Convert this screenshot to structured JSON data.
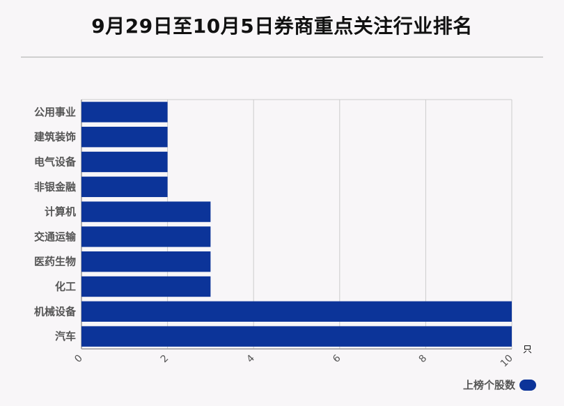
{
  "title": "9月29日至10月5日券商重点关注行业排名",
  "chart_data": {
    "type": "bar",
    "orientation": "horizontal",
    "categories": [
      "公用事业",
      "建筑装饰",
      "电气设备",
      "非银金融",
      "计算机",
      "交通运输",
      "医药生物",
      "化工",
      "机械设备",
      "汽车"
    ],
    "series": [
      {
        "name": "上榜个股数",
        "values": [
          2,
          2,
          2,
          2,
          3,
          3,
          3,
          3,
          10,
          10
        ]
      }
    ],
    "x_ticks": [
      "0",
      "2",
      "4",
      "6",
      "8",
      "10"
    ],
    "xlim": [
      0,
      10
    ],
    "x_unit": "只",
    "grid": true,
    "legend_position": "bottom-right"
  },
  "colors": {
    "bar": "#0c3499",
    "grid": "#cccccc",
    "axis": "#999999"
  }
}
